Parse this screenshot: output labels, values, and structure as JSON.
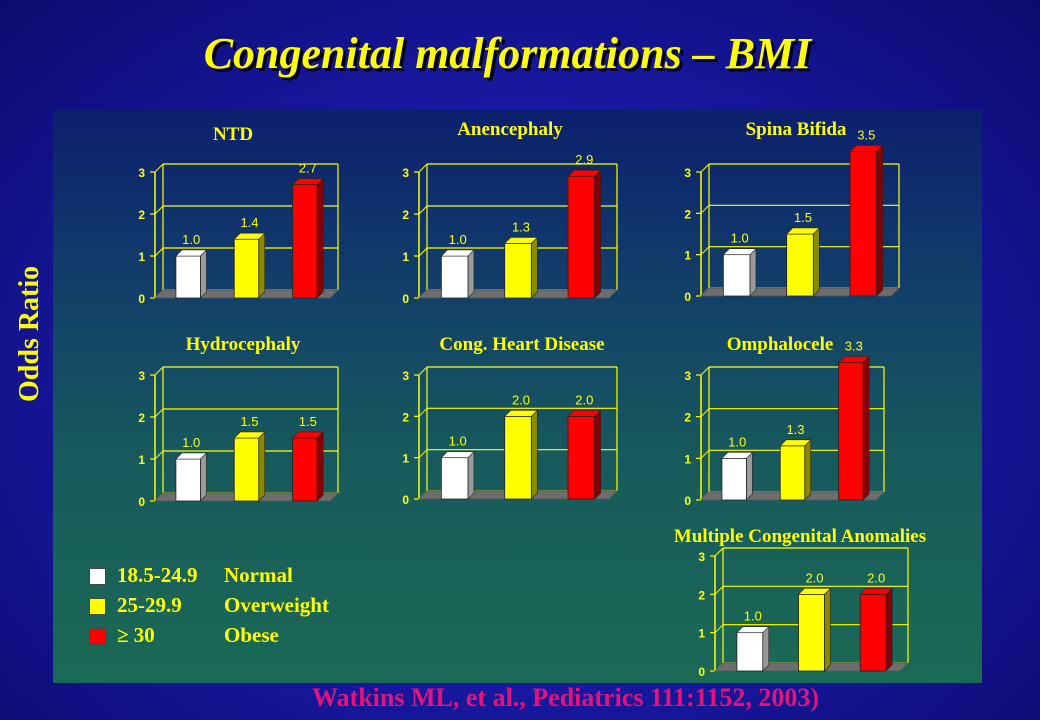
{
  "title": "Congenital malformations – BMI",
  "ylabel": "Odds Ratio",
  "citation": "Watkins ML, et al., Pediatrics 111:1152, 2003)",
  "colors": {
    "normal": "#ffffff",
    "overweight": "#ffff00",
    "obese": "#ff0000",
    "axis": "#ffff00",
    "accent_text": "#ffff00"
  },
  "legend": [
    {
      "range": "18.5-24.9",
      "label": "Normal",
      "color": "#ffffff"
    },
    {
      "range": "25-29.9",
      "label": "Overweight",
      "color": "#ffff00"
    },
    {
      "range": "≥ 30",
      "label": "Obese",
      "color": "#ff0000"
    }
  ],
  "chart_data": [
    {
      "type": "bar",
      "title": "NTD",
      "categories": [
        "18.5-24.9 Normal",
        "25-29.9 Overweight",
        "≥ 30 Obese"
      ],
      "values": [
        1.0,
        1.4,
        2.7
      ],
      "labels": [
        "1.0",
        "1.4",
        "2.7"
      ],
      "ylim": [
        0,
        3
      ],
      "yticks": [
        "0",
        "1",
        "2",
        "3"
      ],
      "grid": true
    },
    {
      "type": "bar",
      "title": "Anencephaly",
      "categories": [
        "18.5-24.9 Normal",
        "25-29.9 Overweight",
        "≥ 30 Obese"
      ],
      "values": [
        1.0,
        1.3,
        2.9
      ],
      "labels": [
        "1.0",
        "1.3",
        "2.9"
      ],
      "ylim": [
        0,
        3
      ],
      "yticks": [
        "0",
        "1",
        "2",
        "3"
      ],
      "grid": true
    },
    {
      "type": "bar",
      "title": "Spina Bifida",
      "categories": [
        "18.5-24.9 Normal",
        "25-29.9 Overweight",
        "≥ 30 Obese"
      ],
      "values": [
        1.0,
        1.5,
        3.5
      ],
      "labels": [
        "1.0",
        "1.5",
        "3.5"
      ],
      "ylim": [
        0,
        3
      ],
      "yticks": [
        "0",
        "1",
        "2",
        "3"
      ],
      "grid": true
    },
    {
      "type": "bar",
      "title": "Hydrocephaly",
      "categories": [
        "18.5-24.9 Normal",
        "25-29.9 Overweight",
        "≥ 30 Obese"
      ],
      "values": [
        1.0,
        1.5,
        1.5
      ],
      "labels": [
        "1.0",
        "1.5",
        "1.5"
      ],
      "ylim": [
        0,
        3
      ],
      "yticks": [
        "0",
        "1",
        "2",
        "3"
      ],
      "grid": true
    },
    {
      "type": "bar",
      "title": "Cong. Heart Disease",
      "categories": [
        "18.5-24.9 Normal",
        "25-29.9 Overweight",
        "≥ 30 Obese"
      ],
      "values": [
        1.0,
        2.0,
        2.0
      ],
      "labels": [
        "1.0",
        "2.0",
        "2.0"
      ],
      "ylim": [
        0,
        3
      ],
      "yticks": [
        "0",
        "1",
        "2",
        "3"
      ],
      "grid": true
    },
    {
      "type": "bar",
      "title": "Omphalocele",
      "categories": [
        "18.5-24.9 Normal",
        "25-29.9 Overweight",
        "≥ 30 Obese"
      ],
      "values": [
        1.0,
        1.3,
        3.3
      ],
      "labels": [
        "1.0",
        "1.3",
        "3.3"
      ],
      "ylim": [
        0,
        3
      ],
      "yticks": [
        "0",
        "1",
        "2",
        "3"
      ],
      "grid": true
    },
    {
      "type": "bar",
      "title": "Multiple Congenital Anomalies",
      "categories": [
        "18.5-24.9 Normal",
        "25-29.9 Overweight",
        "≥ 30 Obese"
      ],
      "values": [
        1.0,
        2.0,
        2.0
      ],
      "labels": [
        "1.0",
        "2.0",
        "2.0"
      ],
      "ylim": [
        0,
        3
      ],
      "yticks": [
        "0",
        "1",
        "2",
        "3"
      ],
      "grid": true
    }
  ]
}
